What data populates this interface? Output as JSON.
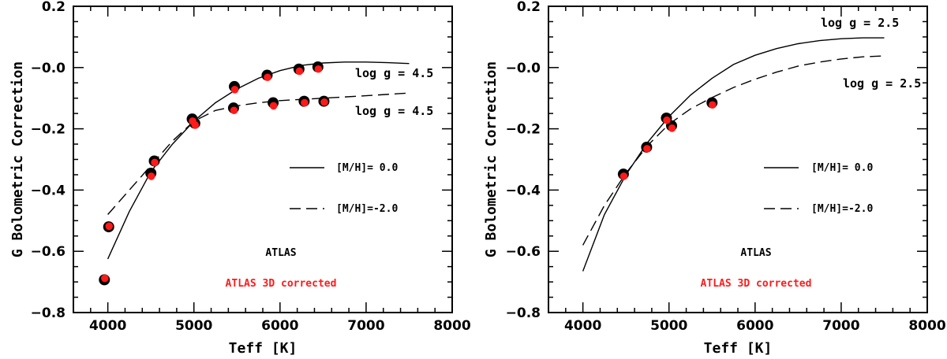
{
  "chart_data": [
    {
      "type": "scatter",
      "panel": "left",
      "title": "",
      "xlabel": "Teff [K]",
      "ylabel": "G Bolometric Correction",
      "xlim": [
        3600,
        8000
      ],
      "ylim": [
        -0.8,
        0.2
      ],
      "reversed_y": true,
      "xticks": [
        4000,
        5000,
        6000,
        7000,
        8000
      ],
      "yticks": [
        0.2,
        0.0,
        -0.2,
        -0.4,
        -0.6,
        -0.8
      ],
      "ytick_labels": [
        "0.2",
        "−0.0",
        "−0.2",
        "−0.4",
        "−0.6",
        "−0.8"
      ],
      "grid": false,
      "curves": [
        {
          "name": "[M/H]= 0.0",
          "style": "solid",
          "label": "log g = 4.5",
          "x": [
            4000,
            4250,
            4500,
            4750,
            5000,
            5250,
            5500,
            5750,
            6000,
            6250,
            6500,
            6750,
            7000,
            7250,
            7500
          ],
          "y": [
            -0.625,
            -0.47,
            -0.34,
            -0.25,
            -0.175,
            -0.115,
            -0.07,
            -0.035,
            -0.01,
            0.007,
            0.015,
            0.018,
            0.018,
            0.016,
            0.013
          ]
        },
        {
          "name": "[M/H]=-2.0",
          "style": "dashed",
          "label": "log g = 4.5",
          "x": [
            4000,
            4250,
            4500,
            4750,
            5000,
            5250,
            5500,
            5750,
            6000,
            6500,
            7000,
            7500
          ],
          "y": [
            -0.48,
            -0.4,
            -0.32,
            -0.24,
            -0.175,
            -0.14,
            -0.125,
            -0.115,
            -0.108,
            -0.1,
            -0.092,
            -0.083
          ]
        }
      ],
      "series": [
        {
          "name": "ATLAS",
          "color": "#000000",
          "x": [
            3960,
            4010,
            4500,
            4540,
            4980,
            5010,
            5470,
            5850,
            5920,
            6220,
            6280,
            6440,
            6510,
            5460
          ],
          "y": [
            -0.693,
            -0.52,
            -0.345,
            -0.305,
            -0.168,
            -0.182,
            -0.062,
            -0.025,
            -0.115,
            -0.005,
            -0.11,
            0.002,
            -0.11,
            -0.132
          ]
        },
        {
          "name": "ATLAS 3D corrected",
          "color": "#ff1a1a",
          "x": [
            3965,
            4015,
            4505,
            4545,
            4985,
            5015,
            5475,
            5855,
            5925,
            6225,
            6285,
            6445,
            6515,
            5465
          ],
          "y": [
            -0.688,
            -0.518,
            -0.355,
            -0.31,
            -0.175,
            -0.188,
            -0.072,
            -0.032,
            -0.125,
            -0.012,
            -0.115,
            -0.005,
            -0.113,
            -0.14
          ]
        }
      ],
      "legend": [
        {
          "label": "[M/H]= 0.0",
          "style": "solid"
        },
        {
          "label": "[M/H]=-2.0",
          "style": "dashed"
        }
      ],
      "annotations": [
        "ATLAS",
        "ATLAS 3D corrected"
      ]
    },
    {
      "type": "scatter",
      "panel": "right",
      "title": "",
      "xlabel": "Teff [K]",
      "ylabel": "G Bolometric Correction",
      "xlim": [
        3600,
        8000
      ],
      "ylim": [
        -0.8,
        0.2
      ],
      "reversed_y": true,
      "xticks": [
        4000,
        5000,
        6000,
        7000,
        8000
      ],
      "yticks": [
        0.2,
        0.0,
        -0.2,
        -0.4,
        -0.6,
        -0.8
      ],
      "ytick_labels": [
        "0.2",
        "−0.0",
        "−0.2",
        "−0.4",
        "−0.6",
        "−0.8"
      ],
      "grid": false,
      "curves": [
        {
          "name": "[M/H]= 0.0",
          "style": "solid",
          "label": "log g = 2.5",
          "x": [
            4000,
            4250,
            4500,
            4750,
            5000,
            5250,
            5500,
            5750,
            6000,
            6250,
            6500,
            6750,
            7000,
            7250,
            7500
          ],
          "y": [
            -0.665,
            -0.48,
            -0.35,
            -0.245,
            -0.16,
            -0.09,
            -0.035,
            0.01,
            0.04,
            0.062,
            0.078,
            0.088,
            0.094,
            0.097,
            0.097
          ]
        },
        {
          "name": "[M/H]=-2.0",
          "style": "dashed",
          "label": "log g = 2.5",
          "x": [
            4000,
            4250,
            4500,
            4750,
            5000,
            5250,
            5500,
            5750,
            6000,
            6250,
            6500,
            6750,
            7000,
            7250,
            7500
          ],
          "y": [
            -0.58,
            -0.45,
            -0.345,
            -0.255,
            -0.185,
            -0.135,
            -0.098,
            -0.065,
            -0.038,
            -0.015,
            0.005,
            0.018,
            0.028,
            0.035,
            0.038
          ]
        }
      ],
      "series": [
        {
          "name": "ATLAS",
          "color": "#000000",
          "x": [
            4470,
            4740,
            4970,
            5030,
            5500
          ],
          "y": [
            -0.348,
            -0.26,
            -0.165,
            -0.19,
            -0.115
          ]
        },
        {
          "name": "ATLAS 3D corrected",
          "color": "#ff1a1a",
          "x": [
            4475,
            4745,
            4975,
            5035,
            5505
          ],
          "y": [
            -0.355,
            -0.265,
            -0.172,
            -0.198,
            -0.122
          ]
        }
      ],
      "legend": [
        {
          "label": "[M/H]= 0.0",
          "style": "solid"
        },
        {
          "label": "[M/H]=-2.0",
          "style": "dashed"
        }
      ],
      "annotations": [
        "ATLAS",
        "ATLAS 3D corrected"
      ]
    }
  ]
}
